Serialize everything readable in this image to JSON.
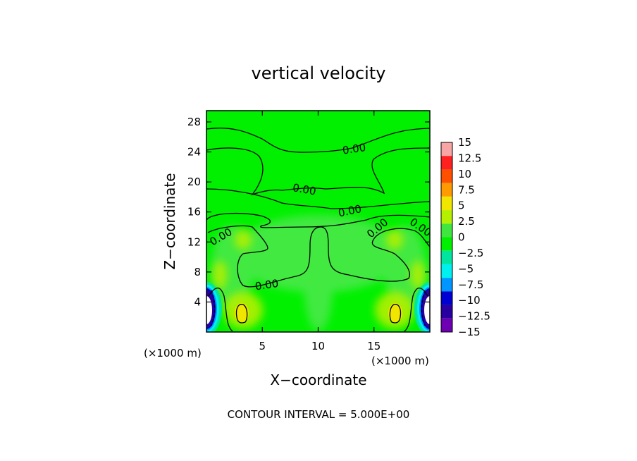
{
  "chart_data": {
    "type": "heatmap",
    "title": "vertical velocity",
    "xlabel": "X−coordinate",
    "ylabel": "Z−coordinate",
    "x_unit_label": "(×1000 m)",
    "z_unit_label": "(×1000 m)",
    "xlim": [
      0,
      20
    ],
    "zlim": [
      0,
      29.5
    ],
    "x_ticks": [
      5,
      10,
      15
    ],
    "z_ticks": [
      4,
      8,
      12,
      16,
      20,
      24,
      28
    ],
    "x_tick_labels": [
      "5",
      "10",
      "15"
    ],
    "z_tick_labels": [
      "4",
      "8",
      "12",
      "16",
      "20",
      "24",
      "28"
    ],
    "colorbar_levels": [
      -15,
      -12.5,
      -10,
      -7.5,
      -5,
      -2.5,
      0,
      2.5,
      5,
      7.5,
      10,
      12.5,
      15
    ],
    "colorbar_labels": [
      "15",
      "12.5",
      "10",
      "7.5",
      "5",
      "2.5",
      "0",
      "−2.5",
      "−5",
      "−7.5",
      "−10",
      "−12.5",
      "−15"
    ],
    "colorbar_colors": [
      "#f7a5a5",
      "#ff2020",
      "#ff5000",
      "#ff9a00",
      "#f0e600",
      "#b4f000",
      "#40e640",
      "#00f000",
      "#00e6a0",
      "#00f0f0",
      "#0096ff",
      "#0000d2",
      "#2800a0",
      "#6e00b4"
    ],
    "contour_label": "0.00",
    "contour_interval_text": "CONTOUR INTERVAL = 5.000E+00"
  }
}
